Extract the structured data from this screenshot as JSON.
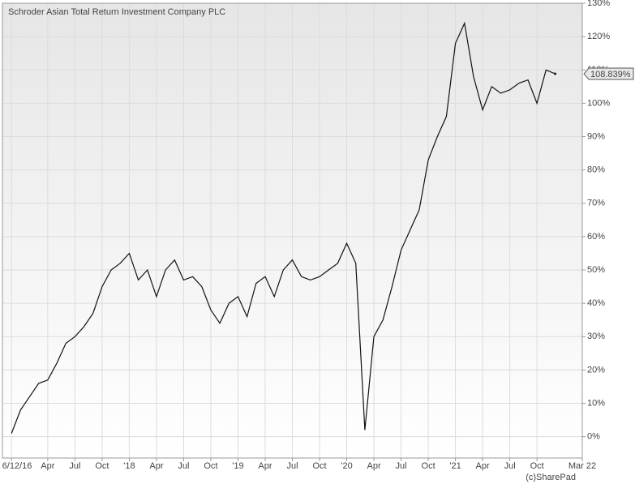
{
  "chart_data": {
    "type": "line",
    "title": "Schroder Asian Total Return Investment Company PLC",
    "credit": "(c)SharePad",
    "x": [
      "2016-12",
      "2017-01",
      "2017-02",
      "2017-03",
      "2017-04",
      "2017-05",
      "2017-06",
      "2017-07",
      "2017-08",
      "2017-09",
      "2017-10",
      "2017-11",
      "2017-12",
      "2018-01",
      "2018-02",
      "2018-03",
      "2018-04",
      "2018-05",
      "2018-06",
      "2018-07",
      "2018-08",
      "2018-09",
      "2018-10",
      "2018-11",
      "2018-12",
      "2019-01",
      "2019-02",
      "2019-03",
      "2019-04",
      "2019-05",
      "2019-06",
      "2019-07",
      "2019-08",
      "2019-09",
      "2019-10",
      "2019-11",
      "2019-12",
      "2020-01",
      "2020-02",
      "2020-03",
      "2020-04",
      "2020-05",
      "2020-06",
      "2020-07",
      "2020-08",
      "2020-09",
      "2020-10",
      "2020-11",
      "2020-12",
      "2021-01",
      "2021-02",
      "2021-03",
      "2021-04",
      "2021-05",
      "2021-06",
      "2021-07",
      "2021-08",
      "2021-09",
      "2021-10",
      "2021-11",
      "2021-12"
    ],
    "series": [
      {
        "name": "Schroder Asian Total Return Investment Company PLC",
        "color": "#111111",
        "values": [
          1,
          8,
          12,
          16,
          17,
          22,
          28,
          30,
          33,
          37,
          45,
          50,
          52,
          55,
          47,
          50,
          42,
          50,
          53,
          47,
          48,
          45,
          38,
          34,
          40,
          42,
          36,
          46,
          48,
          42,
          50,
          53,
          48,
          47,
          48,
          50,
          52,
          58,
          52,
          2,
          30,
          35,
          45,
          56,
          62,
          68,
          83,
          90,
          96,
          118,
          124,
          108,
          98,
          105,
          103,
          104,
          106,
          107,
          100,
          110,
          108.839
        ],
        "value_labels": [
          null,
          null,
          null,
          null,
          null,
          null,
          null,
          null,
          null,
          null,
          null,
          null,
          null,
          null,
          null,
          null,
          null,
          null,
          null,
          null,
          null,
          null,
          null,
          null,
          null,
          null,
          null,
          null,
          null,
          null,
          null,
          null,
          null,
          null,
          null,
          null,
          null,
          null,
          null,
          null,
          null,
          null,
          null,
          null,
          null,
          null,
          null,
          null,
          null,
          null,
          null,
          null,
          null,
          null,
          null,
          null,
          null,
          null,
          null,
          null,
          "108.839%"
        ]
      }
    ],
    "xlim": [
      "2016-11",
      "2022-03"
    ],
    "xticks": [
      {
        "value": "2016-12",
        "label": "6/12/16"
      },
      {
        "value": "2017-04",
        "label": "Apr"
      },
      {
        "value": "2017-07",
        "label": "Jul"
      },
      {
        "value": "2017-10",
        "label": "Oct"
      },
      {
        "value": "2018-01",
        "label": "'18"
      },
      {
        "value": "2018-04",
        "label": "Apr"
      },
      {
        "value": "2018-07",
        "label": "Jul"
      },
      {
        "value": "2018-10",
        "label": "Oct"
      },
      {
        "value": "2019-01",
        "label": "'19"
      },
      {
        "value": "2019-04",
        "label": "Apr"
      },
      {
        "value": "2019-07",
        "label": "Jul"
      },
      {
        "value": "2019-10",
        "label": "Oct"
      },
      {
        "value": "2020-01",
        "label": "'20"
      },
      {
        "value": "2020-04",
        "label": "Apr"
      },
      {
        "value": "2020-07",
        "label": "Jul"
      },
      {
        "value": "2020-10",
        "label": "Oct"
      },
      {
        "value": "2021-01",
        "label": "'21"
      },
      {
        "value": "2021-04",
        "label": "Apr"
      },
      {
        "value": "2021-07",
        "label": "Jul"
      },
      {
        "value": "2021-10",
        "label": "Oct"
      },
      {
        "value": "2022-03",
        "label": "Mar 22"
      }
    ],
    "ylim": [
      -6.4,
      130
    ],
    "yticks": [
      {
        "value": 0,
        "label": "0%"
      },
      {
        "value": 10,
        "label": "10%"
      },
      {
        "value": 20,
        "label": "20%"
      },
      {
        "value": 30,
        "label": "30%"
      },
      {
        "value": 40,
        "label": "40%"
      },
      {
        "value": 50,
        "label": "50%"
      },
      {
        "value": 60,
        "label": "60%"
      },
      {
        "value": 70,
        "label": "70%"
      },
      {
        "value": 80,
        "label": "80%"
      },
      {
        "value": 90,
        "label": "90%"
      },
      {
        "value": 100,
        "label": "100%"
      },
      {
        "value": 110,
        "label": "110%"
      },
      {
        "value": 120,
        "label": "120%"
      },
      {
        "value": 130,
        "label": "130%"
      }
    ],
    "grid": true
  }
}
